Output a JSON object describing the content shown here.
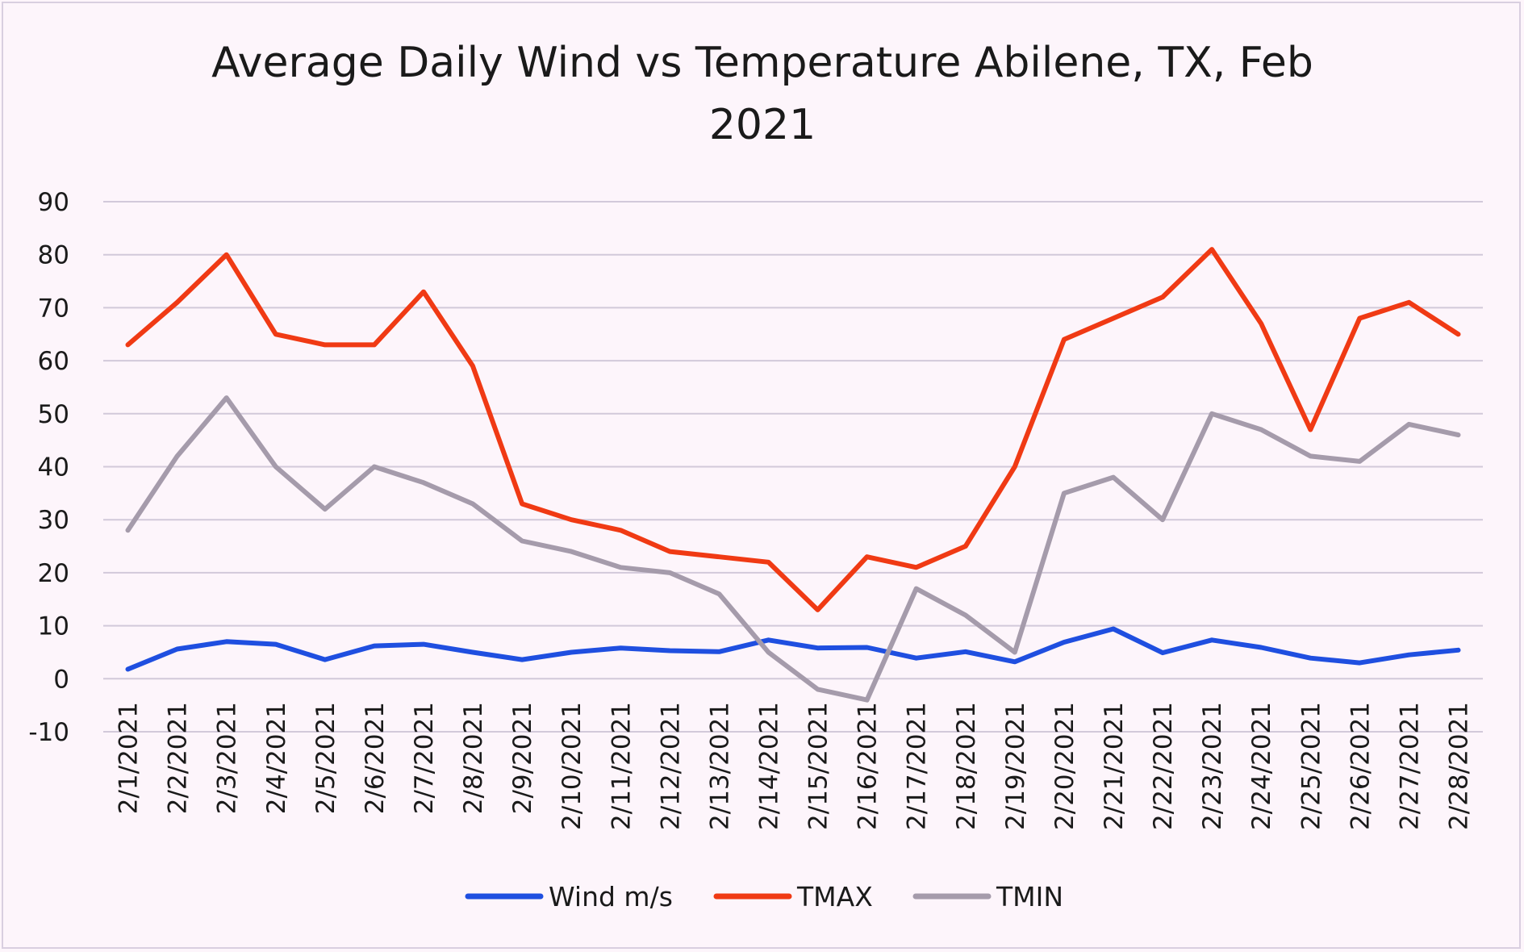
{
  "chart_data": {
    "type": "line",
    "title_line1": "Average Daily Wind vs Temperature Abilene, TX, Feb",
    "title_line2": "2021",
    "xlabel": "",
    "ylabel": "",
    "ylim": [
      -10,
      90
    ],
    "yticks": [
      90,
      80,
      70,
      60,
      50,
      40,
      30,
      20,
      10,
      0,
      -10
    ],
    "grid": true,
    "legend_position": "bottom",
    "categories": [
      "2/1/2021",
      "2/2/2021",
      "2/3/2021",
      "2/4/2021",
      "2/5/2021",
      "2/6/2021",
      "2/7/2021",
      "2/8/2021",
      "2/9/2021",
      "2/10/2021",
      "2/11/2021",
      "2/12/2021",
      "2/13/2021",
      "2/14/2021",
      "2/15/2021",
      "2/16/2021",
      "2/17/2021",
      "2/18/2021",
      "2/19/2021",
      "2/20/2021",
      "2/21/2021",
      "2/22/2021",
      "2/23/2021",
      "2/24/2021",
      "2/25/2021",
      "2/26/2021",
      "2/27/2021",
      "2/28/2021"
    ],
    "series": [
      {
        "name": "Wind m/s",
        "color": "#1f4fe0",
        "values": [
          1.8,
          5.6,
          7.0,
          6.5,
          3.6,
          6.2,
          6.5,
          5.0,
          3.6,
          5.0,
          5.8,
          5.3,
          5.1,
          7.3,
          5.8,
          5.9,
          3.9,
          5.1,
          3.2,
          6.9,
          9.4,
          4.9,
          7.3,
          5.9,
          3.9,
          3.0,
          4.5,
          5.4
        ]
      },
      {
        "name": "TMAX",
        "color": "#f03a14",
        "values": [
          63,
          71,
          80,
          65,
          63,
          63,
          73,
          59,
          33,
          30,
          28,
          24,
          23,
          22,
          13,
          23,
          21,
          25,
          40,
          64,
          68,
          72,
          81,
          67,
          47,
          68,
          71,
          65
        ]
      },
      {
        "name": "TMIN",
        "color": "#a59bab",
        "values": [
          28,
          42,
          53,
          40,
          32,
          40,
          37,
          33,
          26,
          24,
          21,
          20,
          16,
          5,
          -2,
          -4,
          17,
          12,
          5,
          35,
          38,
          30,
          50,
          47,
          42,
          41,
          48,
          46
        ]
      }
    ]
  }
}
